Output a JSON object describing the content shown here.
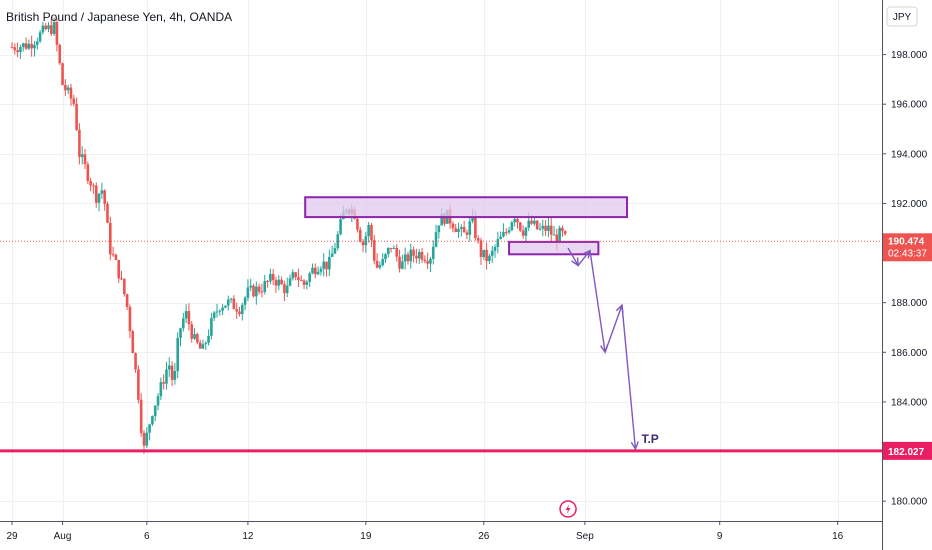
{
  "chart_data": {
    "type": "candlestick",
    "title": "British Pound / Japanese Yen, 4h, OANDA",
    "currency": "JPY",
    "ylim": [
      179.2,
      200.2
    ],
    "y_ticks": [
      "198.000",
      "196.000",
      "194.000",
      "192.000",
      "188.000",
      "186.000",
      "184.000",
      "180.000"
    ],
    "y_tick_values": [
      198,
      196,
      194,
      192,
      188,
      186,
      184,
      180
    ],
    "x_ticks": [
      {
        "label": "29",
        "day": 0
      },
      {
        "label": "Aug",
        "day": 3
      },
      {
        "label": "6",
        "day": 8
      },
      {
        "label": "12",
        "day": 14
      },
      {
        "label": "19",
        "day": 21
      },
      {
        "label": "26",
        "day": 28
      },
      {
        "label": "Sep",
        "day": 34
      },
      {
        "label": "9",
        "day": 42
      },
      {
        "label": "16",
        "day": 49
      }
    ],
    "price_anchors": [
      [
        0.0,
        198.3
      ],
      [
        1.0,
        198.4
      ],
      [
        2.0,
        199.0
      ],
      [
        2.5,
        199.1
      ],
      [
        3.0,
        196.8
      ],
      [
        3.7,
        196.0
      ],
      [
        4.0,
        194.0
      ],
      [
        4.6,
        193.0
      ],
      [
        5.0,
        192.3
      ],
      [
        5.4,
        192.6
      ],
      [
        5.8,
        190.2
      ],
      [
        6.3,
        189.3
      ],
      [
        6.8,
        188.0
      ],
      [
        7.2,
        186.0
      ],
      [
        7.5,
        184.3
      ],
      [
        7.8,
        182.0
      ],
      [
        8.3,
        183.6
      ],
      [
        8.8,
        184.5
      ],
      [
        9.3,
        185.6
      ],
      [
        9.6,
        184.6
      ],
      [
        9.9,
        186.8
      ],
      [
        10.3,
        187.6
      ],
      [
        10.8,
        186.5
      ],
      [
        11.3,
        186.0
      ],
      [
        11.8,
        187.1
      ],
      [
        12.3,
        187.9
      ],
      [
        12.8,
        188.0
      ],
      [
        13.5,
        187.8
      ],
      [
        14.0,
        188.4
      ],
      [
        14.8,
        188.6
      ],
      [
        15.5,
        189.0
      ],
      [
        16.3,
        188.5
      ],
      [
        16.8,
        189.2
      ],
      [
        17.3,
        188.7
      ],
      [
        17.8,
        189.3
      ],
      [
        18.3,
        189.6
      ],
      [
        18.8,
        189.5
      ],
      [
        19.3,
        190.6
      ],
      [
        19.8,
        191.9
      ],
      [
        20.3,
        191.7
      ],
      [
        20.8,
        190.3
      ],
      [
        21.2,
        191.1
      ],
      [
        21.6,
        189.4
      ],
      [
        22.0,
        189.6
      ],
      [
        22.5,
        190.3
      ],
      [
        23.1,
        189.5
      ],
      [
        23.6,
        189.9
      ],
      [
        24.2,
        190.0
      ],
      [
        24.8,
        189.8
      ],
      [
        25.3,
        191.3
      ],
      [
        25.8,
        191.5
      ],
      [
        26.3,
        191.1
      ],
      [
        26.8,
        190.7
      ],
      [
        27.3,
        191.3
      ],
      [
        27.8,
        190.0
      ],
      [
        28.3,
        189.7
      ],
      [
        28.8,
        190.4
      ],
      [
        29.3,
        190.8
      ],
      [
        29.8,
        191.6
      ],
      [
        30.3,
        190.9
      ],
      [
        30.8,
        191.2
      ],
      [
        31.3,
        190.9
      ],
      [
        31.8,
        191.0
      ],
      [
        32.2,
        190.6
      ],
      [
        32.6,
        190.8
      ],
      [
        32.9,
        190.474
      ]
    ],
    "current_price": {
      "value": "190.474",
      "countdown": "02:43:37",
      "price": 190.474
    },
    "target_level": {
      "value": "182.027",
      "price": 182.027
    },
    "zones": [
      {
        "day_start": 17.4,
        "day_end": 36.5,
        "price_low": 191.45,
        "price_high": 192.25,
        "name": "resistance-zone"
      },
      {
        "day_start": 29.5,
        "day_end": 34.8,
        "price_low": 189.95,
        "price_high": 190.45,
        "name": "entry-zone"
      }
    ],
    "projection": [
      [
        33.0,
        190.2
      ],
      [
        33.6,
        189.5
      ],
      [
        34.3,
        190.1
      ],
      [
        35.2,
        186.0
      ],
      [
        36.2,
        187.9
      ],
      [
        37.0,
        182.1
      ]
    ],
    "annotation": {
      "text": "T.P",
      "day": 37.0,
      "price": 182.027
    },
    "colors": {
      "up": "#26a69a",
      "down": "#ef5350",
      "zone_fill": "#e1c8ee",
      "zone_stroke": "#8e24aa",
      "projection": "#7e57c2",
      "target_line": "#e91e63",
      "price_label": "#ef5350",
      "grid": "#eef0f3"
    }
  }
}
